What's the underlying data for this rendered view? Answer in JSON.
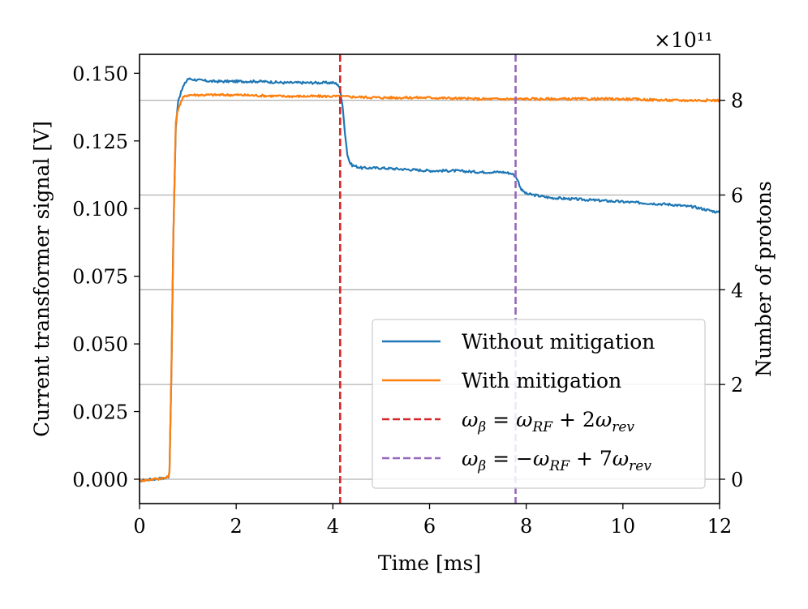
{
  "chart_data": {
    "type": "line",
    "xlabel": "Time [ms]",
    "ylabel": "Current transformer signal [V]",
    "ylabel_right": "Number of protons",
    "right_axis_multiplier": "×10¹¹",
    "xlim": [
      0,
      12
    ],
    "ylim": [
      -0.009,
      0.157
    ],
    "ylim_right": [
      -0.514,
      8.97
    ],
    "x_ticks": [
      0,
      2,
      4,
      6,
      8,
      10,
      12
    ],
    "x_tick_labels": [
      "0",
      "2",
      "4",
      "6",
      "8",
      "10",
      "12"
    ],
    "y_ticks": [
      0.0,
      0.025,
      0.05,
      0.075,
      0.1,
      0.125,
      0.15
    ],
    "y_tick_labels": [
      "0.000",
      "0.025",
      "0.050",
      "0.075",
      "0.100",
      "0.125",
      "0.150"
    ],
    "y_right_ticks": [
      0,
      2,
      4,
      6,
      8
    ],
    "y_right_tick_labels": [
      "0",
      "2",
      "4",
      "6",
      "8"
    ],
    "grid": "horizontal lines at right-axis ticks",
    "legend_position": "lower-right",
    "series": [
      {
        "name": "Without mitigation",
        "color": "#1f77b4",
        "style": "solid",
        "x": [
          0.0,
          0.55,
          0.6,
          0.62,
          0.66,
          0.7,
          0.75,
          0.8,
          0.9,
          1.0,
          1.2,
          1.5,
          2.0,
          2.5,
          3.0,
          3.5,
          4.0,
          4.1,
          4.15,
          4.2,
          4.25,
          4.3,
          4.35,
          4.4,
          4.5,
          4.6,
          5.0,
          5.5,
          6.0,
          6.5,
          7.0,
          7.5,
          7.7,
          7.8,
          7.9,
          8.0,
          8.5,
          9.0,
          9.5,
          10.0,
          10.5,
          11.0,
          11.5,
          12.0
        ],
        "y": [
          -0.0005,
          0.0005,
          0.001,
          0.003,
          0.04,
          0.09,
          0.13,
          0.14,
          0.145,
          0.148,
          0.1475,
          0.147,
          0.147,
          0.147,
          0.1465,
          0.1465,
          0.1465,
          0.146,
          0.144,
          0.138,
          0.128,
          0.12,
          0.117,
          0.116,
          0.1155,
          0.115,
          0.115,
          0.1145,
          0.114,
          0.114,
          0.1135,
          0.1135,
          0.113,
          0.1115,
          0.107,
          0.1055,
          0.104,
          0.1035,
          0.103,
          0.1025,
          0.102,
          0.1015,
          0.1005,
          0.0985
        ]
      },
      {
        "name": "With mitigation",
        "color": "#ff7f0e",
        "style": "solid",
        "x": [
          0.0,
          0.55,
          0.6,
          0.62,
          0.66,
          0.7,
          0.75,
          0.8,
          0.9,
          1.0,
          1.5,
          2.0,
          3.0,
          4.0,
          5.0,
          6.0,
          7.0,
          8.0,
          9.0,
          10.0,
          11.0,
          12.0
        ],
        "y": [
          -0.0005,
          0.0005,
          0.001,
          0.003,
          0.04,
          0.09,
          0.132,
          0.137,
          0.141,
          0.142,
          0.142,
          0.142,
          0.1415,
          0.1415,
          0.141,
          0.141,
          0.1405,
          0.1405,
          0.1405,
          0.1405,
          0.14,
          0.14
        ]
      }
    ],
    "vlines": [
      {
        "x": 4.15,
        "color": "#d62728",
        "style": "dashed",
        "label": "ωβ = ωRF + 2ωrev"
      },
      {
        "x": 7.78,
        "color": "#9467bd",
        "style": "dashed",
        "label": "ωβ = −ωRF + 7ωrev"
      }
    ],
    "legend": [
      {
        "label": "Without mitigation",
        "color": "#1f77b4",
        "style": "solid"
      },
      {
        "label": "With mitigation",
        "color": "#ff7f0e",
        "style": "solid"
      },
      {
        "label": "ωβ = ωRF + 2ωrev",
        "color": "#d62728",
        "style": "dashed",
        "math": {
          "lhs": "ω",
          "lhs_sub": "β",
          "mid": " = ",
          "neg": "",
          "a": "ω",
          "a_sub": "RF",
          "plus": " + 2",
          "b": "ω",
          "b_sub": "rev"
        }
      },
      {
        "label": "ωβ = −ωRF + 7ωrev",
        "color": "#9467bd",
        "style": "dashed",
        "math": {
          "lhs": "ω",
          "lhs_sub": "β",
          "mid": " = ",
          "neg": "−",
          "a": "ω",
          "a_sub": "RF",
          "plus": " + 7",
          "b": "ω",
          "b_sub": "rev"
        }
      }
    ]
  }
}
